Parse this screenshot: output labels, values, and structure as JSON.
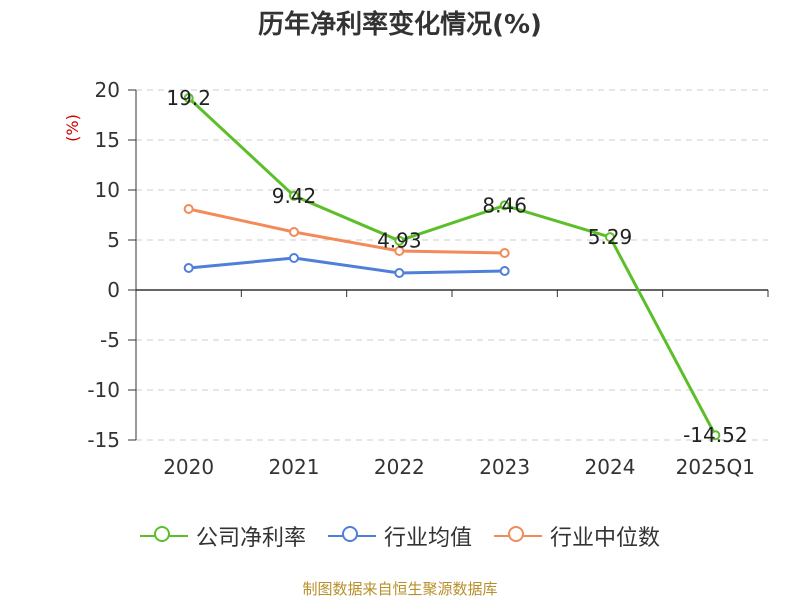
{
  "chart_data": {
    "type": "line",
    "title": "历年净利率变化情况(%)",
    "ylabel": "(%)",
    "xlabel": "",
    "categories": [
      "2020",
      "2021",
      "2022",
      "2023",
      "2024",
      "2025Q1"
    ],
    "ylim": [
      -15,
      20
    ],
    "yticks": [
      20,
      15,
      10,
      5,
      0,
      -5,
      -10,
      -15
    ],
    "grid": true,
    "legend_position": "bottom",
    "series": [
      {
        "name": "公司净利率",
        "color": "#5cbf2a",
        "values": [
          19.2,
          9.42,
          4.93,
          8.46,
          5.29,
          -14.52
        ],
        "labels": [
          "19.2",
          "9.42",
          "4.93",
          "8.46",
          "5.29",
          "-14.52"
        ]
      },
      {
        "name": "行业均值",
        "color": "#4f7fd9",
        "values": [
          2.2,
          3.2,
          1.7,
          1.9,
          null,
          null
        ]
      },
      {
        "name": "行业中位数",
        "color": "#f28a5a",
        "values": [
          8.1,
          5.8,
          3.9,
          3.7,
          null,
          null
        ]
      }
    ]
  },
  "source_note": "制图数据来自恒生聚源数据库"
}
